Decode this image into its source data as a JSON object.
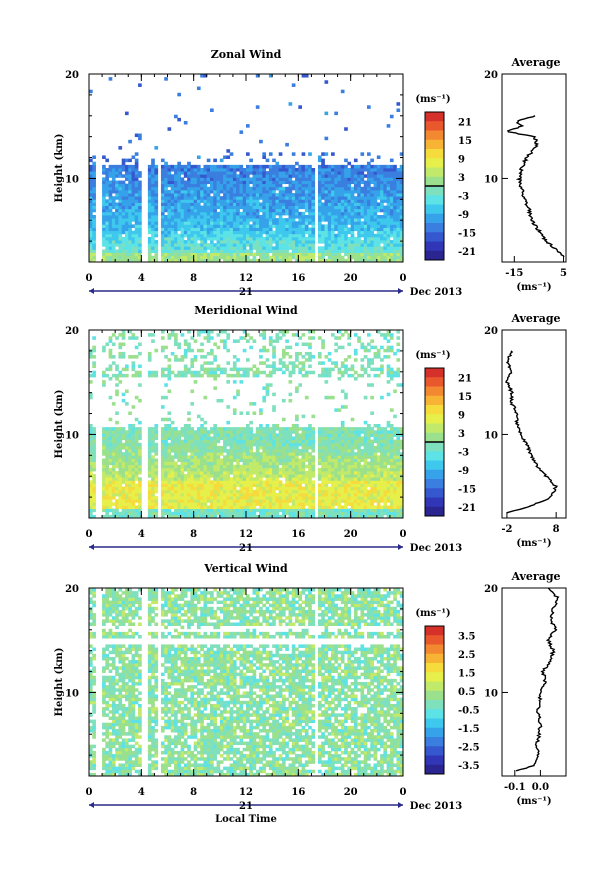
{
  "figure": {
    "date_label": "Dec 2013",
    "day_label": "21",
    "x_axis_label": "Local Time",
    "y_axis_label": "Height (km)",
    "unit_label": "(ms⁻¹)",
    "average_title": "Average",
    "x_ticks": [
      "0",
      "4",
      "8",
      "12",
      "16",
      "20",
      "0"
    ],
    "y_ticks": [
      "20",
      "10"
    ]
  },
  "chart_data": [
    {
      "type": "heatmap",
      "title": "Zonal Wind",
      "ylabel": "Height (km)",
      "xlim": [
        0,
        24
      ],
      "ylim": [
        2,
        20
      ],
      "colorbar": {
        "label": "(ms⁻¹)",
        "ticks": [
          "21",
          "15",
          "9",
          "3",
          "-3",
          "-9",
          "-15",
          "-21"
        ],
        "zero_line": true
      },
      "profile": {
        "title": "Average",
        "xlabel": "(ms⁻¹)",
        "x_ticks": [
          "-15",
          "5"
        ],
        "xlim": [
          -20,
          6
        ],
        "y_ticks": [
          "20",
          "10"
        ],
        "heights": [
          2.5,
          3,
          4,
          5,
          6,
          7,
          8,
          9,
          10,
          11,
          12,
          12.5,
          13,
          13.5,
          14,
          14.5,
          15,
          15.5,
          16
        ],
        "values": [
          5,
          3,
          -2,
          -5,
          -8,
          -9,
          -11,
          -12,
          -13,
          -12,
          -10,
          -8,
          -6,
          -6,
          -7,
          -18,
          -12,
          -14,
          -6
        ]
      }
    },
    {
      "type": "heatmap",
      "title": "Meridional Wind",
      "ylabel": "Height (km)",
      "xlim": [
        0,
        24
      ],
      "ylim": [
        2,
        20
      ],
      "colorbar": {
        "label": "(ms⁻¹)",
        "ticks": [
          "21",
          "15",
          "9",
          "3",
          "-3",
          "-9",
          "-15",
          "-21"
        ],
        "zero_line": true
      },
      "profile": {
        "title": "Average",
        "xlabel": "(ms⁻¹)",
        "x_ticks": [
          "-2",
          "8"
        ],
        "xlim": [
          -3,
          10
        ],
        "y_ticks": [
          "20",
          "10"
        ],
        "heights": [
          2.5,
          3,
          4,
          5,
          6,
          7,
          8,
          9,
          10,
          11,
          12,
          13,
          14,
          15,
          16,
          17,
          18
        ],
        "values": [
          -2,
          2,
          7,
          8,
          6,
          4,
          3,
          2,
          1,
          0,
          0,
          -1,
          -1,
          -2,
          -1,
          -2,
          -1
        ]
      }
    },
    {
      "type": "heatmap",
      "title": "Vertical Wind",
      "ylabel": "Height (km)",
      "xlabel": "Local Time",
      "xlim": [
        0,
        24
      ],
      "ylim": [
        2,
        20
      ],
      "colorbar": {
        "label": "(ms⁻¹)",
        "ticks": [
          "3.5",
          "2.5",
          "1.5",
          "0.5",
          "-0.5",
          "-1.5",
          "-2.5",
          "-3.5"
        ],
        "zero_line": false
      },
      "profile": {
        "title": "Average",
        "xlabel": "(ms⁻¹)",
        "x_ticks": [
          "-0.1",
          "0.0"
        ],
        "xlim": [
          -0.15,
          0.1
        ],
        "y_ticks": [
          "20",
          "10"
        ],
        "heights": [
          2.5,
          3,
          4,
          5,
          6,
          7,
          8,
          9,
          10,
          11,
          12,
          13,
          14,
          15,
          16,
          17,
          18,
          19,
          20
        ],
        "values": [
          -0.1,
          -0.02,
          -0.01,
          -0.015,
          -0.005,
          0.0,
          -0.01,
          -0.005,
          0.0,
          0.02,
          0.01,
          0.04,
          0.05,
          0.03,
          0.06,
          0.04,
          0.05,
          0.07,
          0.03
        ]
      }
    }
  ]
}
